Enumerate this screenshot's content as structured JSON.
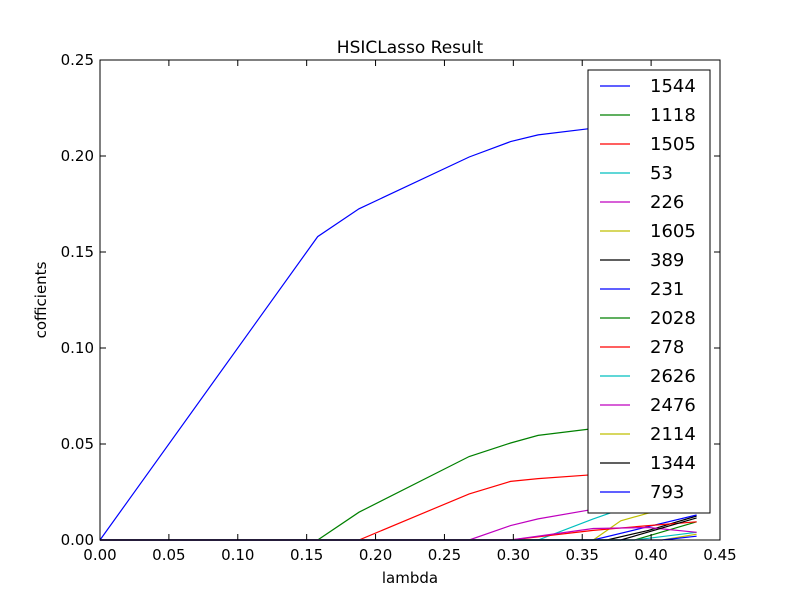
{
  "chart_data": {
    "type": "line",
    "title": "HSICLasso Result",
    "xlabel": "lambda",
    "ylabel": "cofficients",
    "xlim": [
      0.0,
      0.45
    ],
    "ylim": [
      0.0,
      0.25
    ],
    "xticks": [
      "0.00",
      "0.05",
      "0.10",
      "0.15",
      "0.20",
      "0.25",
      "0.30",
      "0.35",
      "0.40",
      "0.45"
    ],
    "yticks": [
      "0.00",
      "0.05",
      "0.10",
      "0.15",
      "0.20",
      "0.25"
    ],
    "grid": false,
    "legend_position": "upper right",
    "series": [
      {
        "name": "1544",
        "color": "#0000ff",
        "x": [
          0.0,
          0.158,
          0.188,
          0.268,
          0.298,
          0.318,
          0.358,
          0.398,
          0.433
        ],
        "y": [
          0.0,
          0.158,
          0.1725,
          0.1995,
          0.2075,
          0.211,
          0.2145,
          0.215,
          0.2155
        ]
      },
      {
        "name": "1118",
        "color": "#008000",
        "x": [
          0.0,
          0.158,
          0.188,
          0.268,
          0.298,
          0.318,
          0.358,
          0.398,
          0.433
        ],
        "y": [
          0.0,
          0.0,
          0.0145,
          0.0435,
          0.0505,
          0.0545,
          0.058,
          0.059,
          0.06
        ]
      },
      {
        "name": "1505",
        "color": "#ff0000",
        "x": [
          0.0,
          0.188,
          0.268,
          0.298,
          0.318,
          0.358,
          0.398,
          0.433
        ],
        "y": [
          0.0,
          0.0,
          0.024,
          0.0305,
          0.032,
          0.034,
          0.035,
          0.0355
        ]
      },
      {
        "name": "53",
        "color": "#00bfbf",
        "x": [
          0.0,
          0.318,
          0.358,
          0.378,
          0.398,
          0.433
        ],
        "y": [
          0.0,
          0.0,
          0.011,
          0.016,
          0.02,
          0.025
        ]
      },
      {
        "name": "226",
        "color": "#bf00bf",
        "x": [
          0.0,
          0.268,
          0.298,
          0.318,
          0.358,
          0.398,
          0.433
        ],
        "y": [
          0.0,
          0.0,
          0.0075,
          0.011,
          0.016,
          0.02,
          0.023
        ]
      },
      {
        "name": "1605",
        "color": "#bfbf00",
        "x": [
          0.0,
          0.358,
          0.378,
          0.398,
          0.433
        ],
        "y": [
          0.0,
          0.0,
          0.01,
          0.014,
          0.017
        ]
      },
      {
        "name": "389",
        "color": "#000000",
        "x": [
          0.0,
          0.368,
          0.398,
          0.433
        ],
        "y": [
          0.0,
          0.0,
          0.005,
          0.0125
        ]
      },
      {
        "name": "231",
        "color": "#0000ff",
        "x": [
          0.0,
          0.358,
          0.398,
          0.433
        ],
        "y": [
          0.0,
          0.0,
          0.007,
          0.013
        ]
      },
      {
        "name": "2028",
        "color": "#008000",
        "x": [
          0.0,
          0.388,
          0.433
        ],
        "y": [
          0.0,
          0.0,
          0.0095
        ]
      },
      {
        "name": "278",
        "color": "#ff0000",
        "x": [
          0.0,
          0.298,
          0.358,
          0.398,
          0.433
        ],
        "y": [
          0.0,
          0.0,
          0.005,
          0.0075,
          0.0095
        ]
      },
      {
        "name": "2626",
        "color": "#00bfbf",
        "x": [
          0.0,
          0.388,
          0.433
        ],
        "y": [
          0.0,
          0.0,
          0.004
        ]
      },
      {
        "name": "2476",
        "color": "#bf00bf",
        "x": [
          0.0,
          0.298,
          0.358,
          0.398,
          0.433
        ],
        "y": [
          0.0,
          0.0,
          0.006,
          0.0065,
          0.004
        ]
      },
      {
        "name": "2114",
        "color": "#bfbf00",
        "x": [
          0.0,
          0.408,
          0.433
        ],
        "y": [
          0.0,
          0.0,
          0.003
        ]
      },
      {
        "name": "1344",
        "color": "#000000",
        "x": [
          0.0,
          0.378,
          0.433
        ],
        "y": [
          0.0,
          0.0,
          0.0115
        ]
      },
      {
        "name": "793",
        "color": "#0000ff",
        "x": [
          0.0,
          0.408,
          0.433
        ],
        "y": [
          0.0,
          0.0,
          0.002
        ]
      }
    ]
  }
}
